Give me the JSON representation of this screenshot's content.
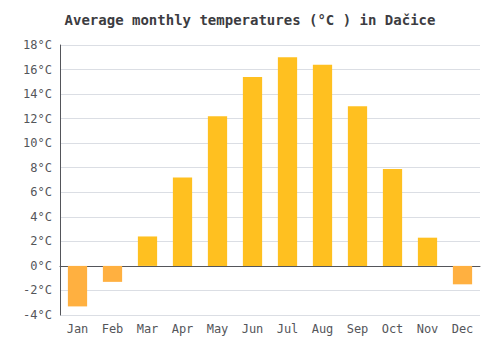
{
  "chart_data": {
    "type": "bar",
    "title": "Average monthly temperatures (°C ) in Dačice",
    "categories": [
      "Jan",
      "Feb",
      "Mar",
      "Apr",
      "May",
      "Jun",
      "Jul",
      "Aug",
      "Sep",
      "Oct",
      "Nov",
      "Dec"
    ],
    "values": [
      -3.3,
      -1.3,
      2.4,
      7.2,
      12.2,
      15.4,
      17.0,
      16.4,
      13.0,
      7.9,
      2.3,
      -1.5
    ],
    "colors": [
      "#FFB040",
      "#FFB040",
      "#FFC020",
      "#FFC020",
      "#FFC020",
      "#FFC020",
      "#FFC020",
      "#FFC020",
      "#FFC020",
      "#FFC020",
      "#FFC020",
      "#FFB040"
    ],
    "ylim": [
      -4,
      18
    ],
    "yticks": [
      {
        "value": -4,
        "label": "-4°C"
      },
      {
        "value": -2,
        "label": "-2°C"
      },
      {
        "value": 0,
        "label": "0°C"
      },
      {
        "value": 2,
        "label": "2°C"
      },
      {
        "value": 4,
        "label": "4°C"
      },
      {
        "value": 6,
        "label": "6°C"
      },
      {
        "value": 8,
        "label": "8°C"
      },
      {
        "value": 10,
        "label": "10°C"
      },
      {
        "value": 12,
        "label": "12°C"
      },
      {
        "value": 14,
        "label": "14°C"
      },
      {
        "value": 16,
        "label": "16°C"
      },
      {
        "value": 18,
        "label": "18°C"
      }
    ],
    "grid": true
  }
}
